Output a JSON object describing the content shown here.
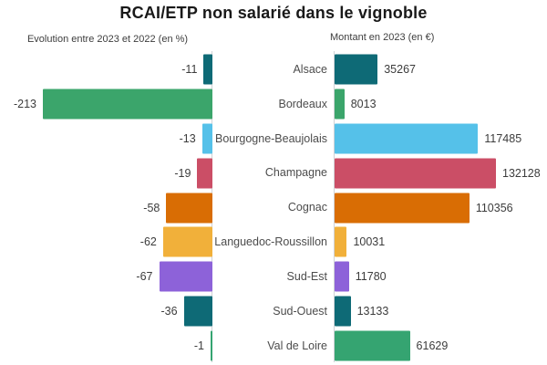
{
  "title": "RCAI/ETP non salarié dans le vignoble",
  "panels": {
    "left_subtitle": "Evolution entre 2023 et 2022 (en %)",
    "right_subtitle": "Montant en 2023 (en €)"
  },
  "chart_data": {
    "type": "bar",
    "orientation": "horizontal",
    "title": "RCAI/ETP non salarié dans le vignoble",
    "grid": "off",
    "legend": "none",
    "categories": [
      "Alsace",
      "Bordeaux",
      "Bourgogne-Beaujolais",
      "Champagne",
      "Cognac",
      "Languedoc-Roussillon",
      "Sud-Est",
      "Sud-Ouest",
      "Val de Loire"
    ],
    "series": [
      {
        "name": "Evolution entre 2023 et 2022 (en %)",
        "panel": "left",
        "values": [
          -11,
          -213,
          -13,
          -19,
          -58,
          -62,
          -67,
          -36,
          -1
        ],
        "xlim": [
          -213,
          0
        ]
      },
      {
        "name": "Montant en 2023 (en €)",
        "panel": "right",
        "values": [
          35267,
          8013,
          117485,
          132128,
          110356,
          10031,
          11780,
          13133,
          61629
        ],
        "xlim": [
          0,
          132128
        ]
      }
    ],
    "colors": [
      "#0e6a76",
      "#3ba56b",
      "#55c1e9",
      "#cb4e66",
      "#d96d04",
      "#f1b03a",
      "#8d62d9",
      "#0e6a76",
      "#35a471"
    ]
  },
  "style_colors": {
    "axis_line": "#cfd2d6",
    "title_text": "#191919",
    "subtitle_text": "#3d3d3d",
    "category_text": "#4c4c4c",
    "value_text": "#3c3c3c",
    "background": "#ffffff"
  }
}
